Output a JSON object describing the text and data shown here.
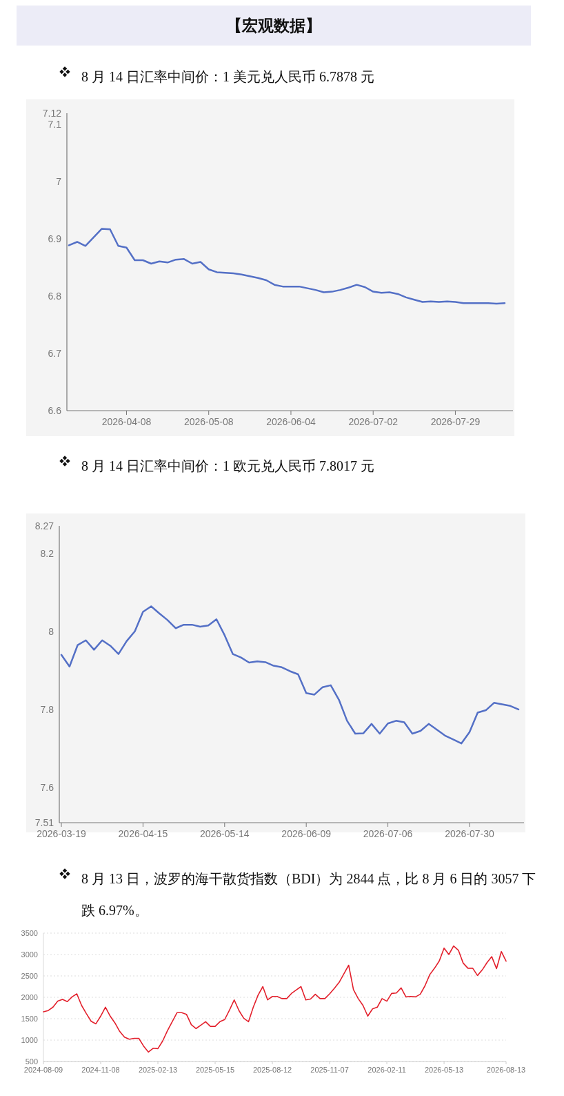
{
  "chart_data": [
    {
      "type": "line",
      "title": "【宏观数据】",
      "subtitle": "8 月 14 日汇率中间价：1 美元兑人民币 6.7878 元",
      "categories": [
        null,
        null,
        null,
        null,
        null,
        null,
        null,
        "2026-04-08",
        null,
        null,
        null,
        null,
        null,
        null,
        null,
        null,
        null,
        "2026-05-08",
        null,
        null,
        null,
        null,
        null,
        null,
        null,
        null,
        null,
        "2026-06-04",
        null,
        null,
        null,
        null,
        null,
        null,
        null,
        null,
        null,
        "2026-07-02",
        null,
        null,
        null,
        null,
        null,
        null,
        null,
        null,
        null,
        "2026-07-29",
        null,
        null,
        null,
        null,
        null,
        null
      ],
      "series": [
        {
          "color": "#5470c6",
          "values": [
            6.889,
            6.895,
            6.888,
            6.903,
            6.918,
            6.917,
            6.888,
            6.885,
            6.863,
            6.863,
            6.857,
            6.861,
            6.859,
            6.864,
            6.865,
            6.857,
            6.86,
            6.847,
            6.842,
            6.841,
            6.84,
            6.838,
            6.835,
            6.832,
            6.828,
            6.82,
            6.817,
            6.817,
            6.817,
            6.814,
            6.811,
            6.807,
            6.808,
            6.811,
            6.815,
            6.82,
            6.816,
            6.808,
            6.806,
            6.807,
            6.804,
            6.798,
            6.794,
            6.79,
            6.791,
            6.79,
            6.791,
            6.79,
            6.788,
            6.788,
            6.788,
            6.788,
            6.787,
            6.788
          ]
        }
      ],
      "ylim": [
        6.6,
        7.12
      ],
      "yticks": [
        6.6,
        6.7,
        6.8,
        6.9,
        7,
        7.1,
        7.12
      ]
    },
    {
      "type": "line",
      "title": "8 月 14 日汇率中间价：1 欧元兑人民币 7.8017 元",
      "categories": [
        "2026-03-19",
        null,
        null,
        null,
        null,
        null,
        null,
        null,
        null,
        null,
        "2026-04-15",
        null,
        null,
        null,
        null,
        null,
        null,
        null,
        null,
        null,
        "2026-05-14",
        null,
        null,
        null,
        null,
        null,
        null,
        null,
        null,
        null,
        "2026-06-09",
        null,
        null,
        null,
        null,
        null,
        null,
        null,
        null,
        null,
        "2026-07-06",
        null,
        null,
        null,
        null,
        null,
        null,
        null,
        null,
        null,
        "2026-07-30",
        null,
        null,
        null,
        null,
        null,
        null
      ],
      "series": [
        {
          "color": "#5470c6",
          "values": [
            7.94,
            7.91,
            7.965,
            7.977,
            7.953,
            7.977,
            7.963,
            7.942,
            7.975,
            8.0,
            8.05,
            8.064,
            8.046,
            8.029,
            8.008,
            8.017,
            8.017,
            8.012,
            8.015,
            8.031,
            7.99,
            7.942,
            7.933,
            7.92,
            7.923,
            7.921,
            7.912,
            7.908,
            7.898,
            7.89,
            7.842,
            7.838,
            7.857,
            7.862,
            7.825,
            7.771,
            7.738,
            7.739,
            7.763,
            7.738,
            7.764,
            7.771,
            7.767,
            7.738,
            7.745,
            7.763,
            7.748,
            7.733,
            7.723,
            7.713,
            7.742,
            7.792,
            7.798,
            7.817,
            7.813,
            7.809,
            7.8
          ]
        }
      ],
      "ylim": [
        7.51,
        8.27
      ],
      "yticks": [
        7.51,
        7.6,
        7.8,
        8,
        8.2,
        8.27
      ]
    },
    {
      "type": "line",
      "title": "8 月 13 日，波罗的海干散货指数（BDI）为 2844 点，比 8 月 6 日的 3057 下跌 6.97%。",
      "categories": [
        "2024-08-09",
        null,
        null,
        null,
        null,
        null,
        null,
        null,
        null,
        null,
        null,
        null,
        "2024-11-08",
        null,
        null,
        null,
        null,
        null,
        null,
        null,
        null,
        null,
        null,
        null,
        "2025-02-13",
        null,
        null,
        null,
        null,
        null,
        null,
        null,
        null,
        null,
        null,
        null,
        "2025-05-15",
        null,
        null,
        null,
        null,
        null,
        null,
        null,
        null,
        null,
        null,
        null,
        "2025-08-12",
        null,
        null,
        null,
        null,
        null,
        null,
        null,
        null,
        null,
        null,
        null,
        "2025-11-07",
        null,
        null,
        null,
        null,
        null,
        null,
        null,
        null,
        null,
        null,
        null,
        "2026-02-11",
        null,
        null,
        null,
        null,
        null,
        null,
        null,
        null,
        null,
        null,
        null,
        "2026-05-13",
        null,
        null,
        null,
        null,
        null,
        null,
        null,
        null,
        null,
        null,
        null,
        null,
        "2026-08-13"
      ],
      "series": [
        {
          "color": "#e3202c",
          "values": [
            1660,
            1690,
            1770,
            1910,
            1950,
            1900,
            2010,
            2080,
            1810,
            1620,
            1440,
            1380,
            1560,
            1770,
            1560,
            1400,
            1200,
            1070,
            1020,
            1040,
            1040,
            860,
            720,
            810,
            800,
            980,
            1220,
            1430,
            1640,
            1640,
            1600,
            1360,
            1270,
            1350,
            1430,
            1320,
            1320,
            1430,
            1480,
            1700,
            1940,
            1690,
            1510,
            1430,
            1770,
            2050,
            2250,
            1940,
            2020,
            2020,
            1970,
            1970,
            2090,
            2170,
            2250,
            1940,
            1960,
            2070,
            1970,
            1970,
            2080,
            2210,
            2350,
            2550,
            2750,
            2180,
            1970,
            1810,
            1560,
            1730,
            1770,
            1970,
            1910,
            2090,
            2100,
            2220,
            2010,
            2020,
            2010,
            2070,
            2270,
            2530,
            2680,
            2850,
            3150,
            3000,
            3200,
            3100,
            2800,
            2680,
            2680,
            2510,
            2640,
            2810,
            2950,
            2670,
            3070,
            2844
          ]
        }
      ],
      "ylim": [
        500,
        3500
      ],
      "yticks": [
        500,
        1000,
        1500,
        2000,
        2500,
        3000,
        3500
      ],
      "grid": "y"
    }
  ]
}
